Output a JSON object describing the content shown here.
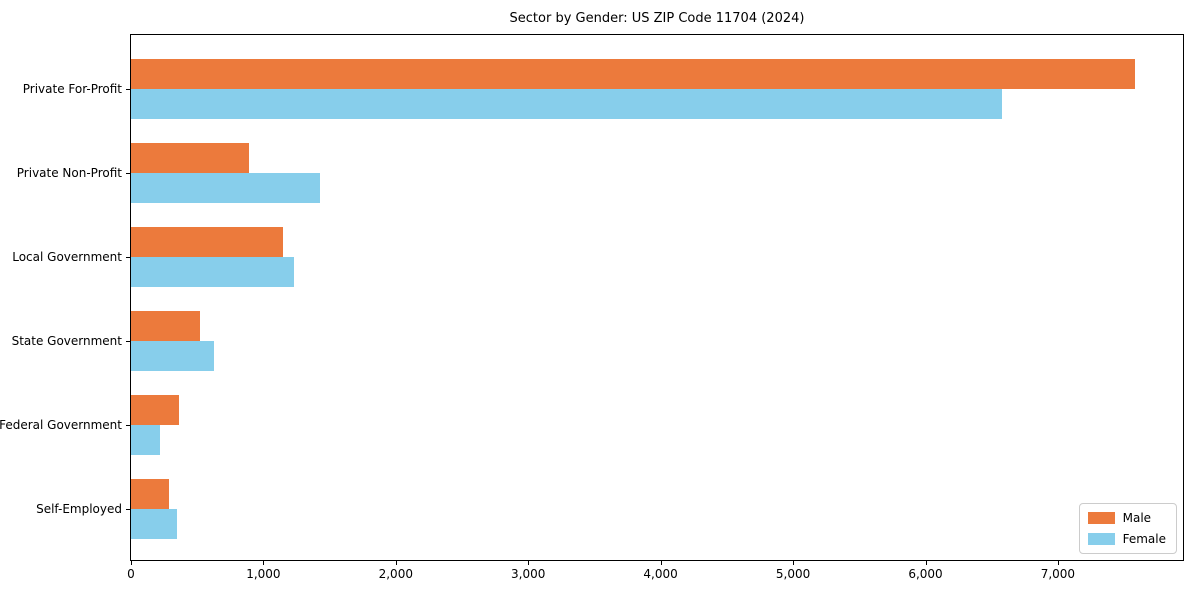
{
  "chart_data": {
    "type": "bar",
    "orientation": "horizontal",
    "title": "Sector by Gender: US ZIP Code 11704 (2024)",
    "categories": [
      "Private For-Profit",
      "Private Non-Profit",
      "Local Government",
      "State Government",
      "Federal Government",
      "Self-Employed"
    ],
    "series": [
      {
        "name": "Male",
        "color": "#EC7A3C",
        "values": [
          7580,
          890,
          1150,
          520,
          360,
          290
        ]
      },
      {
        "name": "Female",
        "color": "#87CEEB",
        "values": [
          6580,
          1430,
          1230,
          630,
          215,
          350
        ]
      }
    ],
    "xlabel": "",
    "ylabel": "",
    "x_ticks": [
      0,
      1000,
      2000,
      3000,
      4000,
      5000,
      6000,
      7000
    ],
    "x_tick_labels": [
      "0",
      "1,000",
      "2,000",
      "3,000",
      "4,000",
      "5,000",
      "6,000",
      "7,000"
    ],
    "xlim": [
      0,
      7960
    ],
    "grid": false,
    "legend_position": "lower right",
    "legend_entries": [
      "Male",
      "Female"
    ],
    "axis_color": "#000000",
    "background_color": "#ffffff"
  }
}
